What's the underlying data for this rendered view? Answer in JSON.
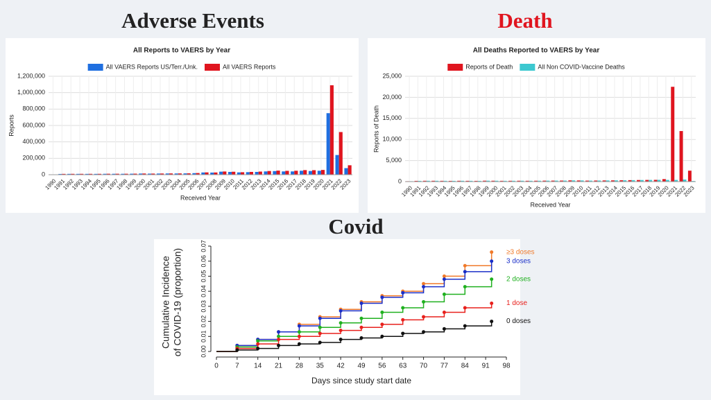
{
  "headings": [
    "Adverse Events",
    "Death",
    "Covid"
  ],
  "chart_data": [
    {
      "type": "bar",
      "title": "All Reports to VAERS by Year",
      "xlabel": "Received Year",
      "ylabel": "Reports",
      "categories": [
        "1990",
        "1991",
        "1992",
        "1993",
        "1994",
        "1995",
        "1996",
        "1997",
        "1998",
        "1999",
        "2000",
        "2001",
        "2002",
        "2003",
        "2004",
        "2005",
        "2006",
        "2007",
        "2008",
        "2009",
        "2010",
        "2011",
        "2012",
        "2013",
        "2014",
        "2015",
        "2016",
        "2017",
        "2018",
        "2019",
        "2020",
        "2021",
        "2022",
        "2023"
      ],
      "series": [
        {
          "name": "All VAERS Reports US/Terr./Unk.",
          "color": "#1f6fe0",
          "values": [
            2100,
            9000,
            10000,
            10000,
            10000,
            10000,
            11000,
            11000,
            11000,
            12000,
            14000,
            13000,
            14000,
            15000,
            15000,
            16000,
            19000,
            27000,
            26000,
            37000,
            34000,
            28000,
            31000,
            34000,
            40000,
            44000,
            40000,
            40000,
            48000,
            45000,
            48000,
            750000,
            240000,
            80000
          ]
        },
        {
          "name": "All VAERS Reports",
          "color": "#e0151f",
          "values": [
            2200,
            10000,
            10500,
            10500,
            10500,
            10500,
            11500,
            11500,
            11500,
            12500,
            14500,
            13500,
            14500,
            15500,
            15500,
            16500,
            20000,
            28000,
            27000,
            39000,
            36000,
            30000,
            34000,
            38000,
            45000,
            50000,
            47000,
            48000,
            56000,
            55000,
            58000,
            1090000,
            520000,
            115000
          ]
        }
      ],
      "ylim": [
        0,
        1200000
      ],
      "yticks": [
        0,
        {
          "value": 200000,
          "label": "200,000"
        },
        {
          "value": 400000,
          "label": "400,000"
        },
        {
          "value": 600000,
          "label": "600,000"
        },
        {
          "value": 800000,
          "label": "800,000"
        },
        {
          "value": 1000000,
          "label": "1,000,000"
        },
        {
          "value": 1200000,
          "label": "1,200,000"
        }
      ],
      "grid": true
    },
    {
      "type": "bar",
      "title": "All Deaths Reported to VAERS by Year",
      "xlabel": "Received Year",
      "ylabel": "Reports of Death",
      "categories": [
        "1990",
        "1991",
        "1992",
        "1993",
        "1994",
        "1995",
        "1996",
        "1997",
        "1998",
        "1999",
        "2000",
        "2001",
        "2002",
        "2003",
        "2004",
        "2005",
        "2006",
        "2007",
        "2008",
        "2009",
        "2010",
        "2011",
        "2012",
        "2013",
        "2014",
        "2015",
        "2016",
        "2017",
        "2018",
        "2019",
        "2020",
        "2021",
        "2022",
        "2023"
      ],
      "series": [
        {
          "name": "Reports of Death",
          "color": "#e0151f",
          "values": [
            100,
            180,
            200,
            200,
            190,
            180,
            200,
            190,
            180,
            220,
            210,
            190,
            200,
            210,
            200,
            210,
            230,
            240,
            250,
            300,
            280,
            240,
            260,
            280,
            300,
            320,
            350,
            380,
            400,
            420,
            600,
            22500,
            12000,
            2600
          ]
        },
        {
          "name": "All Non COVID-Vaccine Deaths",
          "color": "#3cc8d0",
          "values": [
            100,
            180,
            200,
            200,
            190,
            180,
            200,
            190,
            180,
            220,
            210,
            190,
            200,
            210,
            200,
            210,
            230,
            240,
            250,
            300,
            280,
            240,
            260,
            280,
            300,
            320,
            350,
            380,
            400,
            420,
            400,
            400,
            500,
            150
          ]
        }
      ],
      "ylim": [
        0,
        25000
      ],
      "yticks": [
        0,
        {
          "value": 5000,
          "label": "5,000"
        },
        {
          "value": 10000,
          "label": "10,000"
        },
        {
          "value": 15000,
          "label": "15,000"
        },
        {
          "value": 20000,
          "label": "20,000"
        },
        {
          "value": 25000,
          "label": "25,000"
        }
      ],
      "grid": true
    },
    {
      "type": "line",
      "xlabel": "Days since study start date",
      "ylabel": [
        "Cumulative Incidence",
        "of COVID-19 (proportion)"
      ],
      "x": [
        0,
        7,
        14,
        21,
        28,
        35,
        42,
        49,
        56,
        63,
        70,
        77,
        84,
        93
      ],
      "series": [
        {
          "name": "≥3 doses",
          "color": "#f07a2a",
          "values": [
            0,
            0.004,
            0.008,
            0.013,
            0.018,
            0.023,
            0.028,
            0.033,
            0.037,
            0.04,
            0.045,
            0.05,
            0.057,
            0.066
          ]
        },
        {
          "name": "3 doses",
          "color": "#1a2fc8",
          "values": [
            0,
            0.004,
            0.008,
            0.013,
            0.017,
            0.022,
            0.027,
            0.032,
            0.036,
            0.039,
            0.043,
            0.048,
            0.053,
            0.06
          ]
        },
        {
          "name": "2 doses",
          "color": "#1fb01f",
          "values": [
            0,
            0.003,
            0.007,
            0.01,
            0.013,
            0.016,
            0.019,
            0.022,
            0.026,
            0.029,
            0.033,
            0.038,
            0.043,
            0.048
          ]
        },
        {
          "name": "1 dose",
          "color": "#e8201c",
          "values": [
            0,
            0.002,
            0.005,
            0.008,
            0.01,
            0.012,
            0.014,
            0.016,
            0.018,
            0.021,
            0.023,
            0.026,
            0.029,
            0.032
          ]
        },
        {
          "name": "0 doses",
          "color": "#111111",
          "values": [
            0,
            0.001,
            0.002,
            0.004,
            0.005,
            0.006,
            0.008,
            0.009,
            0.01,
            0.012,
            0.013,
            0.015,
            0.017,
            0.02
          ]
        }
      ],
      "xlim": [
        0,
        98
      ],
      "xticks": [
        0,
        7,
        14,
        21,
        28,
        35,
        42,
        49,
        56,
        63,
        70,
        77,
        84,
        91,
        98
      ],
      "ylim": [
        0,
        0.07
      ],
      "yticks": [
        {
          "value": 0,
          "label": "0.00"
        },
        {
          "value": 0.01,
          "label": "0.01"
        },
        {
          "value": 0.02,
          "label": "0.02"
        },
        {
          "value": 0.03,
          "label": "0.03"
        },
        {
          "value": 0.04,
          "label": "0.04"
        },
        {
          "value": 0.05,
          "label": "0.05"
        },
        {
          "value": 0.06,
          "label": "0.06"
        },
        {
          "value": 0.07,
          "label": "0.07"
        }
      ],
      "grid": false
    }
  ]
}
